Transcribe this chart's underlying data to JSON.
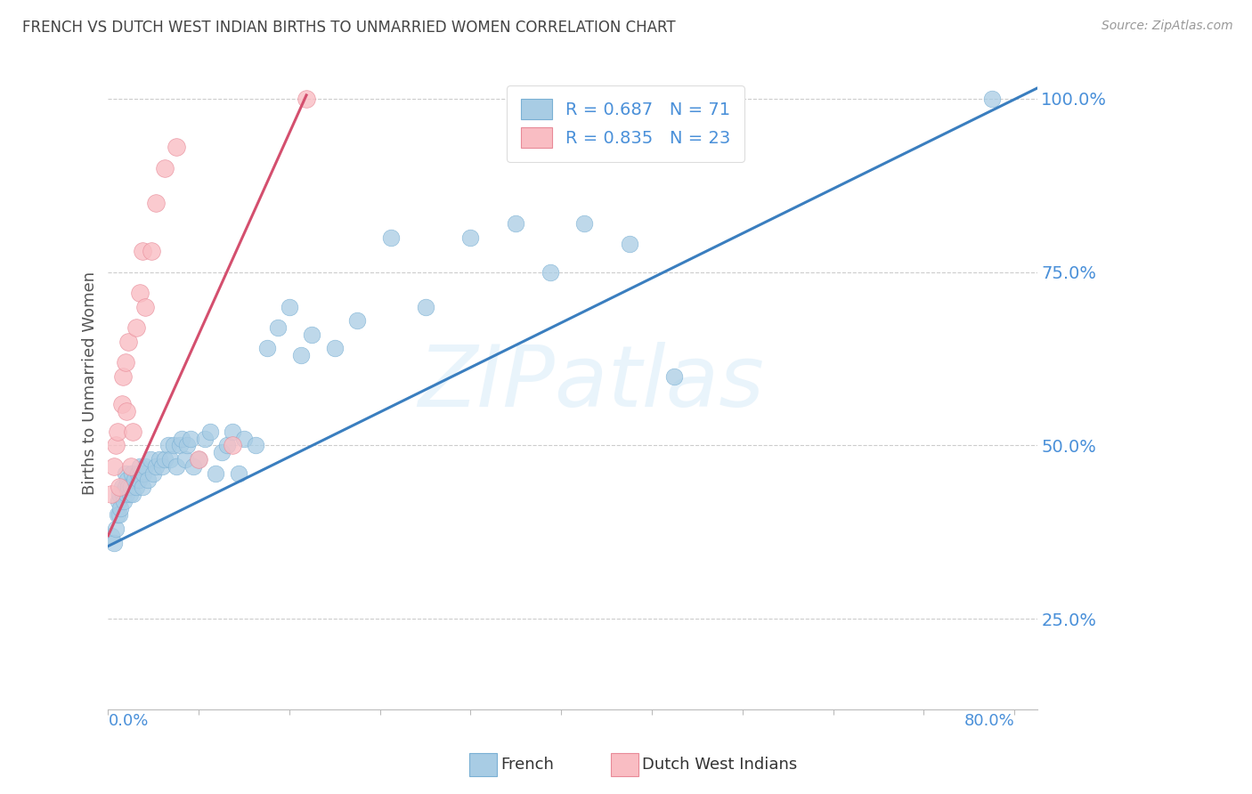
{
  "title": "FRENCH VS DUTCH WEST INDIAN BIRTHS TO UNMARRIED WOMEN CORRELATION CHART",
  "source": "Source: ZipAtlas.com",
  "ylabel": "Births to Unmarried Women",
  "xtick_left": "0.0%",
  "xtick_right": "80.0%",
  "ytick_labels": [
    "25.0%",
    "50.0%",
    "75.0%",
    "100.0%"
  ],
  "ytick_values": [
    0.25,
    0.5,
    0.75,
    1.0
  ],
  "xlim": [
    0.0,
    0.82
  ],
  "ylim": [
    0.12,
    1.06
  ],
  "french_R": 0.687,
  "french_N": 71,
  "dutch_R": 0.835,
  "dutch_N": 23,
  "french_color": "#a8cce4",
  "french_edge_color": "#7ab0d4",
  "dutch_color": "#f9bdc3",
  "dutch_edge_color": "#e88a98",
  "french_line_color": "#3a7ebf",
  "dutch_line_color": "#d44f6e",
  "axis_color": "#4a90d9",
  "title_color": "#444444",
  "source_color": "#999999",
  "background_color": "#ffffff",
  "grid_color": "#cccccc",
  "watermark_color": "#ddeeff",
  "legend_text_color": "#4a90d9",
  "french_x": [
    0.003,
    0.005,
    0.007,
    0.008,
    0.009,
    0.01,
    0.01,
    0.011,
    0.012,
    0.013,
    0.014,
    0.015,
    0.015,
    0.016,
    0.017,
    0.018,
    0.019,
    0.02,
    0.021,
    0.022,
    0.023,
    0.025,
    0.026,
    0.027,
    0.028,
    0.03,
    0.031,
    0.033,
    0.035,
    0.037,
    0.04,
    0.042,
    0.045,
    0.048,
    0.05,
    0.053,
    0.055,
    0.058,
    0.06,
    0.063,
    0.065,
    0.068,
    0.07,
    0.073,
    0.075,
    0.08,
    0.085,
    0.09,
    0.095,
    0.1,
    0.105,
    0.11,
    0.115,
    0.12,
    0.13,
    0.14,
    0.15,
    0.16,
    0.17,
    0.18,
    0.2,
    0.22,
    0.25,
    0.28,
    0.32,
    0.36,
    0.39,
    0.42,
    0.46,
    0.5,
    0.78
  ],
  "french_y": [
    0.37,
    0.36,
    0.38,
    0.4,
    0.42,
    0.4,
    0.43,
    0.41,
    0.44,
    0.43,
    0.42,
    0.44,
    0.46,
    0.43,
    0.45,
    0.44,
    0.43,
    0.44,
    0.46,
    0.43,
    0.45,
    0.44,
    0.46,
    0.45,
    0.47,
    0.44,
    0.46,
    0.47,
    0.45,
    0.48,
    0.46,
    0.47,
    0.48,
    0.47,
    0.48,
    0.5,
    0.48,
    0.5,
    0.47,
    0.5,
    0.51,
    0.48,
    0.5,
    0.51,
    0.47,
    0.48,
    0.51,
    0.52,
    0.46,
    0.49,
    0.5,
    0.52,
    0.46,
    0.51,
    0.5,
    0.64,
    0.67,
    0.7,
    0.63,
    0.66,
    0.64,
    0.68,
    0.8,
    0.7,
    0.8,
    0.82,
    0.75,
    0.82,
    0.79,
    0.6,
    1.0
  ],
  "dutch_x": [
    0.003,
    0.005,
    0.007,
    0.008,
    0.01,
    0.012,
    0.013,
    0.015,
    0.016,
    0.018,
    0.02,
    0.022,
    0.025,
    0.028,
    0.03,
    0.033,
    0.038,
    0.042,
    0.05,
    0.06,
    0.08,
    0.11,
    0.175
  ],
  "dutch_y": [
    0.43,
    0.47,
    0.5,
    0.52,
    0.44,
    0.56,
    0.6,
    0.62,
    0.55,
    0.65,
    0.47,
    0.52,
    0.67,
    0.72,
    0.78,
    0.7,
    0.78,
    0.85,
    0.9,
    0.93,
    0.48,
    0.5,
    1.0
  ],
  "french_line_x0": 0.0,
  "french_line_y0": 0.355,
  "french_line_x1": 0.82,
  "french_line_y1": 1.015,
  "dutch_line_x0": 0.0,
  "dutch_line_y0": 0.37,
  "dutch_line_x1": 0.175,
  "dutch_line_y1": 1.005
}
